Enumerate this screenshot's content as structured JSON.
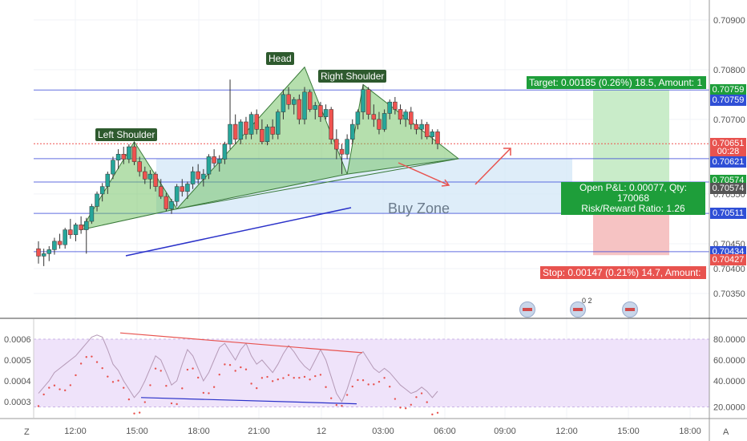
{
  "price_axis": {
    "ticks": [
      {
        "label": "0.70900",
        "v": 0.709
      },
      {
        "label": "0.70800",
        "v": 0.708
      },
      {
        "label": "0.70700",
        "v": 0.707
      },
      {
        "label": "0.70550",
        "v": 0.7055
      },
      {
        "label": "0.70450",
        "v": 0.7045
      },
      {
        "label": "0.70400",
        "v": 0.704
      },
      {
        "label": "0.70350",
        "v": 0.7035
      }
    ],
    "price_labels": [
      {
        "label": "0.70759",
        "v": 0.70759,
        "color": "#1e9e3a"
      },
      {
        "label": "0.70759",
        "v": 0.70738,
        "color": "#2f4fd6"
      },
      {
        "label": "0.70651",
        "v": 0.70651,
        "color": "#e8534f"
      },
      {
        "label": "00:28",
        "v": 0.70636,
        "color": "#e8534f"
      },
      {
        "label": "0.70621",
        "v": 0.70614,
        "color": "#2f4fd6"
      },
      {
        "label": "0.70574",
        "v": 0.70578,
        "color": "#1e9e3a"
      },
      {
        "label": "0.70574",
        "v": 0.70561,
        "color": "#555555"
      },
      {
        "label": "0.70511",
        "v": 0.70511,
        "color": "#2f4fd6"
      },
      {
        "label": "0.70434",
        "v": 0.70434,
        "color": "#2f4fd6"
      },
      {
        "label": "0.70427",
        "v": 0.70417,
        "color": "#e8534f"
      }
    ]
  },
  "osc_axis": {
    "left_ticks": [
      "0.0006",
      "0.0005",
      "0.0004",
      "0.0003"
    ],
    "right_ticks": [
      "80.0000",
      "60.0000",
      "40.0000",
      "20.0000"
    ]
  },
  "time_axis": {
    "labels": [
      "12:00",
      "15:00",
      "18:00",
      "21:00",
      "12",
      "03:00",
      "06:00",
      "09:00",
      "12:00",
      "15:00",
      "18:00"
    ]
  },
  "annotations": {
    "left_shoulder": "Left Shoulder",
    "head": "Head",
    "right_shoulder": "Right Shoulder",
    "buy_zone": "Buy Zone",
    "target": "Target: 0.00185 (0.26%) 18.5, Amount: 1",
    "pnl_line1": "Open P&L: 0.00077, Qty: 170068",
    "pnl_line2": "Risk/Reward Ratio: 1.26",
    "stop": "Stop: 0.00147 (0.21%) 14.7, Amount: "
  },
  "event_marker_count": "0 2",
  "corner_buttons": {
    "left": "Z",
    "right": "A"
  },
  "colors": {
    "up": "#26a69a",
    "down": "#ef5350",
    "pattern_fill": "#6cbf5b",
    "buy_zone": "#d6e8f7",
    "target_zone": "#c9ecc9",
    "stop_zone": "#f6c3c3",
    "osc_bg": "#efe3fa"
  },
  "chart_data": {
    "type": "candlestick",
    "ohlc": [
      [
        0.7044,
        0.70455,
        0.7041,
        0.70425
      ],
      [
        0.70425,
        0.7044,
        0.70405,
        0.7043
      ],
      [
        0.7043,
        0.70445,
        0.70415,
        0.70438
      ],
      [
        0.70438,
        0.70462,
        0.70428,
        0.70455
      ],
      [
        0.70455,
        0.7047,
        0.7044,
        0.70448
      ],
      [
        0.70448,
        0.70482,
        0.7044,
        0.70478
      ],
      [
        0.70478,
        0.705,
        0.7046,
        0.70468
      ],
      [
        0.70468,
        0.70492,
        0.70455,
        0.70488
      ],
      [
        0.70488,
        0.70505,
        0.7047,
        0.70478
      ],
      [
        0.70478,
        0.70502,
        0.7043,
        0.70495
      ],
      [
        0.70495,
        0.7053,
        0.7049,
        0.70525
      ],
      [
        0.70525,
        0.70555,
        0.70515,
        0.7055
      ],
      [
        0.7055,
        0.70572,
        0.70535,
        0.70565
      ],
      [
        0.70565,
        0.70595,
        0.7055,
        0.7059
      ],
      [
        0.7059,
        0.70625,
        0.7058,
        0.70618
      ],
      [
        0.70618,
        0.7064,
        0.706,
        0.7063
      ],
      [
        0.7063,
        0.70645,
        0.7061,
        0.7062
      ],
      [
        0.7062,
        0.7065,
        0.70612,
        0.70645
      ],
      [
        0.70645,
        0.70655,
        0.70608,
        0.70615
      ],
      [
        0.70615,
        0.70625,
        0.70585,
        0.70595
      ],
      [
        0.70595,
        0.70605,
        0.7057,
        0.7058
      ],
      [
        0.7058,
        0.70598,
        0.7056,
        0.7059
      ],
      [
        0.7059,
        0.70595,
        0.70555,
        0.70565
      ],
      [
        0.70565,
        0.7058,
        0.7054,
        0.70545
      ],
      [
        0.70545,
        0.70552,
        0.70515,
        0.7052
      ],
      [
        0.7052,
        0.7054,
        0.7051,
        0.70535
      ],
      [
        0.70535,
        0.7057,
        0.70525,
        0.70565
      ],
      [
        0.70565,
        0.7058,
        0.70545,
        0.70555
      ],
      [
        0.70555,
        0.70575,
        0.7054,
        0.7057
      ],
      [
        0.7057,
        0.70605,
        0.7056,
        0.70595
      ],
      [
        0.70595,
        0.7061,
        0.7057,
        0.7058
      ],
      [
        0.7058,
        0.706,
        0.70565,
        0.7059
      ],
      [
        0.7059,
        0.7063,
        0.7058,
        0.70625
      ],
      [
        0.70625,
        0.7064,
        0.70605,
        0.70612
      ],
      [
        0.70612,
        0.70628,
        0.70595,
        0.7062
      ],
      [
        0.7062,
        0.70655,
        0.7061,
        0.7065
      ],
      [
        0.7065,
        0.7078,
        0.7064,
        0.7069
      ],
      [
        0.7069,
        0.7071,
        0.7065,
        0.7066
      ],
      [
        0.7066,
        0.707,
        0.7065,
        0.70695
      ],
      [
        0.70695,
        0.70705,
        0.7066,
        0.7067
      ],
      [
        0.7067,
        0.70715,
        0.7066,
        0.7071
      ],
      [
        0.7071,
        0.7072,
        0.7067,
        0.7068
      ],
      [
        0.7068,
        0.707,
        0.7065,
        0.70655
      ],
      [
        0.70655,
        0.7069,
        0.70648,
        0.70685
      ],
      [
        0.70685,
        0.707,
        0.7066,
        0.7067
      ],
      [
        0.7067,
        0.7072,
        0.7066,
        0.70715
      ],
      [
        0.70715,
        0.7076,
        0.707,
        0.7075
      ],
      [
        0.7075,
        0.70765,
        0.7072,
        0.7073
      ],
      [
        0.7073,
        0.70745,
        0.7071,
        0.7074
      ],
      [
        0.7074,
        0.7075,
        0.7069,
        0.707
      ],
      [
        0.707,
        0.70765,
        0.7069,
        0.70755
      ],
      [
        0.70755,
        0.7076,
        0.70715,
        0.7072
      ],
      [
        0.7072,
        0.70735,
        0.707,
        0.70728
      ],
      [
        0.70728,
        0.70735,
        0.70695,
        0.70705
      ],
      [
        0.70705,
        0.7073,
        0.707,
        0.7072
      ],
      [
        0.7072,
        0.70725,
        0.7065,
        0.7066
      ],
      [
        0.7066,
        0.7068,
        0.7062,
        0.7064
      ],
      [
        0.7064,
        0.7065,
        0.7059,
        0.7063
      ],
      [
        0.7063,
        0.7067,
        0.7062,
        0.7066
      ],
      [
        0.7066,
        0.707,
        0.7065,
        0.7069
      ],
      [
        0.7069,
        0.7072,
        0.7068,
        0.70715
      ],
      [
        0.70715,
        0.7077,
        0.707,
        0.7076
      ],
      [
        0.7076,
        0.70765,
        0.707,
        0.7071
      ],
      [
        0.7071,
        0.7073,
        0.70685,
        0.707
      ],
      [
        0.707,
        0.70715,
        0.7067,
        0.7068
      ],
      [
        0.7068,
        0.7072,
        0.70675,
        0.70712
      ],
      [
        0.70712,
        0.7074,
        0.707,
        0.70735
      ],
      [
        0.70735,
        0.70745,
        0.7071,
        0.7072
      ],
      [
        0.7072,
        0.7073,
        0.7069,
        0.707
      ],
      [
        0.707,
        0.7072,
        0.70685,
        0.70715
      ],
      [
        0.70715,
        0.70725,
        0.7068,
        0.7069
      ],
      [
        0.7069,
        0.707,
        0.7067,
        0.7068
      ],
      [
        0.7068,
        0.707,
        0.7066,
        0.7069
      ],
      [
        0.7069,
        0.70695,
        0.7066,
        0.70665
      ],
      [
        0.70665,
        0.7068,
        0.7065,
        0.70675
      ],
      [
        0.70675,
        0.7068,
        0.7064,
        0.70651
      ]
    ],
    "oscillator": [
      0.00034,
      0.00037,
      0.0004,
      0.00044,
      0.00046,
      0.00048,
      0.0005,
      0.00052,
      0.00055,
      0.00058,
      0.00061,
      0.00062,
      0.00061,
      0.00055,
      0.00048,
      0.00045,
      0.0004,
      0.00036,
      0.00032,
      0.00035,
      0.0004,
      0.00046,
      0.00052,
      0.0005,
      0.00044,
      0.00038,
      0.0004,
      0.00048,
      0.00055,
      0.00052,
      0.00046,
      0.0004,
      0.00044,
      0.0005,
      0.00056,
      0.00058,
      0.00054,
      0.0005,
      0.00055,
      0.00058,
      0.00052,
      0.00048,
      0.0005,
      0.00047,
      0.00044,
      0.00048,
      0.00053,
      0.00057,
      0.00054,
      0.0005,
      0.00047,
      0.00045,
      0.0005,
      0.00055,
      0.0005,
      0.00042,
      0.00034,
      0.0003,
      0.00036,
      0.00044,
      0.00052,
      0.00054,
      0.0005,
      0.00046,
      0.00044,
      0.00046,
      0.00044,
      0.00041,
      0.00038,
      0.00036,
      0.00034,
      0.00035,
      0.00037,
      0.00035,
      0.00032,
      0.00035
    ],
    "target_price": 0.70759,
    "entry_price": 0.70574,
    "stop_price": 0.70427,
    "buy_zone_range": [
      0.70511,
      0.70621
    ],
    "horizontal_lines": [
      0.70759,
      0.70621,
      0.70574,
      0.70511,
      0.70434
    ],
    "last_price": 0.70651
  }
}
